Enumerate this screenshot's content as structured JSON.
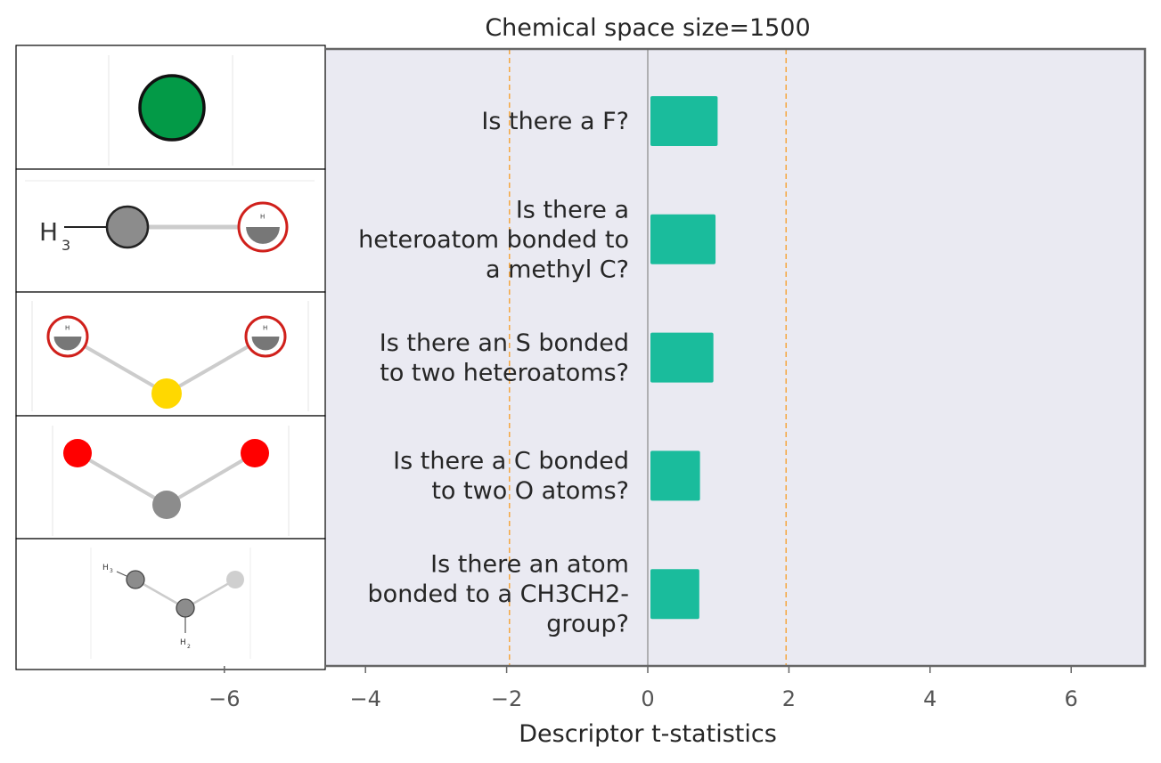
{
  "chart_data": {
    "type": "bar",
    "orientation": "horizontal",
    "title": "Chemical space size=1500",
    "xlabel": "Descriptor t-statistics",
    "ylabel": "",
    "xlim": [
      -8.5,
      7
    ],
    "xticks": [
      "−6",
      "−4",
      "−2",
      "0",
      "2",
      "4",
      "6"
    ],
    "xtick_values": [
      -6,
      -4,
      -2,
      0,
      2,
      4,
      6
    ],
    "threshold_lines": [
      -1.96,
      1.96
    ],
    "grid": false,
    "categories": [
      "Is there a F?",
      "Is there a heteroatom bonded to a methyl C?",
      "Is there an S bonded to two heteroatoms?",
      "Is there a C bonded to two O atoms?",
      "Is there an atom bonded to a CH3CH2- group?"
    ],
    "category_lines": [
      [
        "Is there a F?"
      ],
      [
        "Is there a",
        "heteroatom bonded to",
        "a methyl C?"
      ],
      [
        "Is there an S bonded",
        "to two heteroatoms?"
      ],
      [
        "Is there a C bonded",
        "to two O atoms?"
      ],
      [
        "Is there an atom",
        "bonded to a CH3CH2-",
        "group?"
      ]
    ],
    "values": [
      0.99,
      0.96,
      0.93,
      0.74,
      0.73
    ]
  },
  "colors": {
    "bar": "#1abc9c",
    "plot_background": "#eaeaf2",
    "threshold_line": "#f5a742",
    "zero_line": "#888888",
    "frame": "#666666"
  },
  "molecule_images": [
    {
      "icon": "fluorine-atom-icon",
      "labels": []
    },
    {
      "icon": "methyl-heteroatom-fragment-icon",
      "labels": [
        "H",
        "3",
        "H"
      ]
    },
    {
      "icon": "sulfur-two-heteroatoms-fragment-icon",
      "labels": [
        "H",
        "H"
      ]
    },
    {
      "icon": "carbon-two-oxygens-fragment-icon",
      "labels": []
    },
    {
      "icon": "ethyl-group-fragment-icon",
      "labels": [
        "H",
        "3",
        "H",
        "2"
      ]
    }
  ]
}
